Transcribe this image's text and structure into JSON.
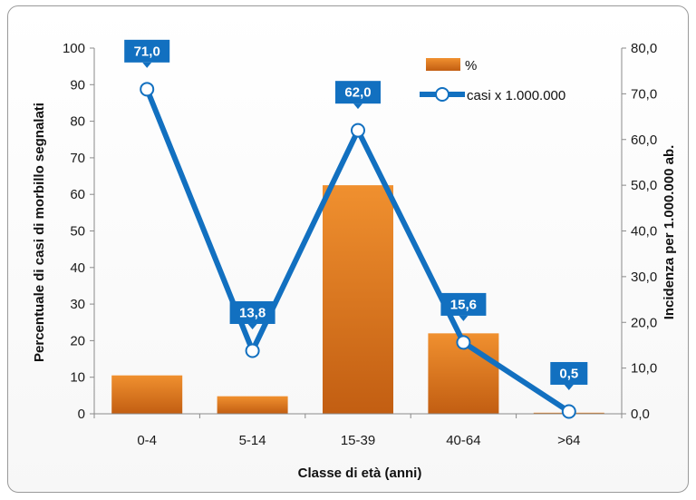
{
  "chart_data": {
    "type": "bar",
    "title": "",
    "categories": [
      "0-4",
      "5-14",
      "15-39",
      "40-64",
      ">64"
    ],
    "series": [
      {
        "name": "%",
        "type": "bar",
        "axis": "left",
        "color": "#E07B24",
        "values": [
          10.5,
          4.8,
          62.5,
          22.0,
          0.3
        ]
      },
      {
        "name": "casi x 1.000.000",
        "type": "line",
        "axis": "right",
        "color": "#1270C0",
        "values": [
          71.0,
          13.8,
          62.0,
          15.6,
          0.5
        ],
        "data_labels": [
          "71,0",
          "13,8",
          "62,0",
          "15,6",
          "0,5"
        ]
      }
    ],
    "xlabel": "Classe di età (anni)",
    "ylabel": "Percentuale di casi di morbillo segnalati",
    "y2label": "Incidenza per 1.000.000 ab.",
    "ylim": [
      0,
      100
    ],
    "y2lim": [
      0,
      80
    ],
    "yticks": [
      "0",
      "10",
      "20",
      "30",
      "40",
      "50",
      "60",
      "70",
      "80",
      "90",
      "100"
    ],
    "y2ticks": [
      "0,0",
      "10,0",
      "20,0",
      "30,0",
      "40,0",
      "50,0",
      "60,0",
      "70,0",
      "80,0"
    ],
    "grid": false,
    "legend_position": "top-right"
  }
}
